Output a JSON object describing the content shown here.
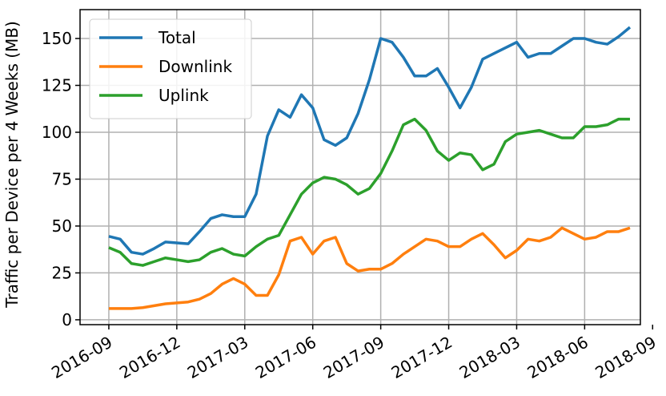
{
  "chart_data": {
    "type": "line",
    "ylabel": "Traffic per Device per 4 Weeks (MB)",
    "x": [
      0,
      0.5,
      1,
      1.5,
      2,
      2.5,
      3,
      3.5,
      4,
      4.5,
      5,
      5.5,
      6,
      6.5,
      7,
      7.5,
      8,
      8.5,
      9,
      9.5,
      10,
      10.5,
      11,
      11.5,
      12,
      12.5,
      13,
      13.5,
      14,
      14.5,
      15,
      15.5,
      16,
      16.5,
      17,
      17.5,
      18,
      18.5,
      19,
      19.5,
      20,
      20.5,
      21,
      21.5,
      22,
      22.5,
      23
    ],
    "series": [
      {
        "name": "Total",
        "color": "#1f77b4",
        "values": [
          44.5,
          43,
          36,
          35,
          38,
          41.5,
          41,
          40.5,
          47,
          54,
          56,
          55,
          55,
          67,
          98,
          112,
          108,
          120,
          113,
          96,
          93,
          97,
          110,
          128,
          150,
          148,
          140,
          130,
          130,
          134,
          124,
          113,
          124,
          139,
          142,
          145,
          148,
          140,
          142,
          142,
          146,
          150,
          150,
          148,
          147,
          151,
          156
        ]
      },
      {
        "name": "Downlink",
        "color": "#ff7f0e",
        "values": [
          6,
          6,
          6,
          6.5,
          7.5,
          8.5,
          9,
          9.5,
          11,
          14,
          19,
          22,
          19,
          13,
          13,
          24,
          42,
          44,
          35,
          42,
          44,
          30,
          26,
          27,
          27,
          30,
          35,
          39,
          43,
          42,
          39,
          39,
          43,
          46,
          40,
          33,
          37,
          43,
          42,
          44,
          49,
          46,
          43,
          44,
          47,
          47,
          49
        ]
      },
      {
        "name": "Uplink",
        "color": "#2ca02c",
        "values": [
          38.5,
          36,
          30,
          29,
          31,
          33,
          32,
          31,
          32,
          36,
          38,
          35,
          34,
          39,
          43,
          45,
          56,
          67,
          73,
          76,
          75,
          72,
          67,
          70,
          78,
          90,
          104,
          107,
          101,
          90,
          85,
          89,
          88,
          80,
          83,
          95,
          99,
          100,
          101,
          99,
          97,
          97,
          103,
          103,
          104,
          107,
          107
        ]
      }
    ],
    "xlim": [
      -1.27,
      23.46
    ],
    "xticks": [
      {
        "value": 0,
        "label": "2016-09"
      },
      {
        "value": 3,
        "label": "2016-12"
      },
      {
        "value": 6,
        "label": "2017-03"
      },
      {
        "value": 9,
        "label": "2017-06"
      },
      {
        "value": 12,
        "label": "2017-09"
      },
      {
        "value": 15,
        "label": "2017-12"
      },
      {
        "value": 18,
        "label": "2018-03"
      },
      {
        "value": 21,
        "label": "2018-06"
      },
      {
        "value": 24,
        "label": "2018-09"
      }
    ],
    "ylim": [
      -2.6,
      165.4
    ],
    "yticks": [
      0,
      25,
      50,
      75,
      100,
      125,
      150
    ],
    "grid": true,
    "legend": "upper left"
  }
}
